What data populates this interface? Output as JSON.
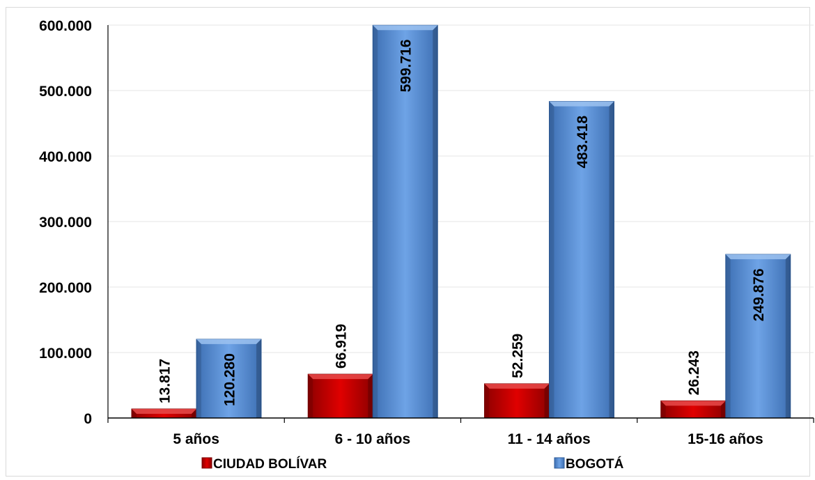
{
  "chart_data": {
    "type": "bar",
    "categories": [
      "5 años",
      "6 - 10 años",
      "11 - 14 años",
      "15-16 años"
    ],
    "series": [
      {
        "name": "CIUDAD BOLÍVAR",
        "values": [
          13817,
          66919,
          52259,
          26243
        ],
        "labels": [
          "13.817",
          "66.919",
          "52.259",
          "26.243"
        ],
        "color": "#cc0000"
      },
      {
        "name": "BOGOTÁ",
        "values": [
          120280,
          599716,
          483418,
          249876
        ],
        "labels": [
          "120.280",
          "599.716",
          "483.418",
          "249.876"
        ],
        "color": "#5b93d8"
      }
    ],
    "y_ticks": [
      "0",
      "100.000",
      "200.000",
      "300.000",
      "400.000",
      "500.000",
      "600.000"
    ],
    "ylim": [
      0,
      600000
    ],
    "grid": true,
    "legend": "bottom"
  }
}
